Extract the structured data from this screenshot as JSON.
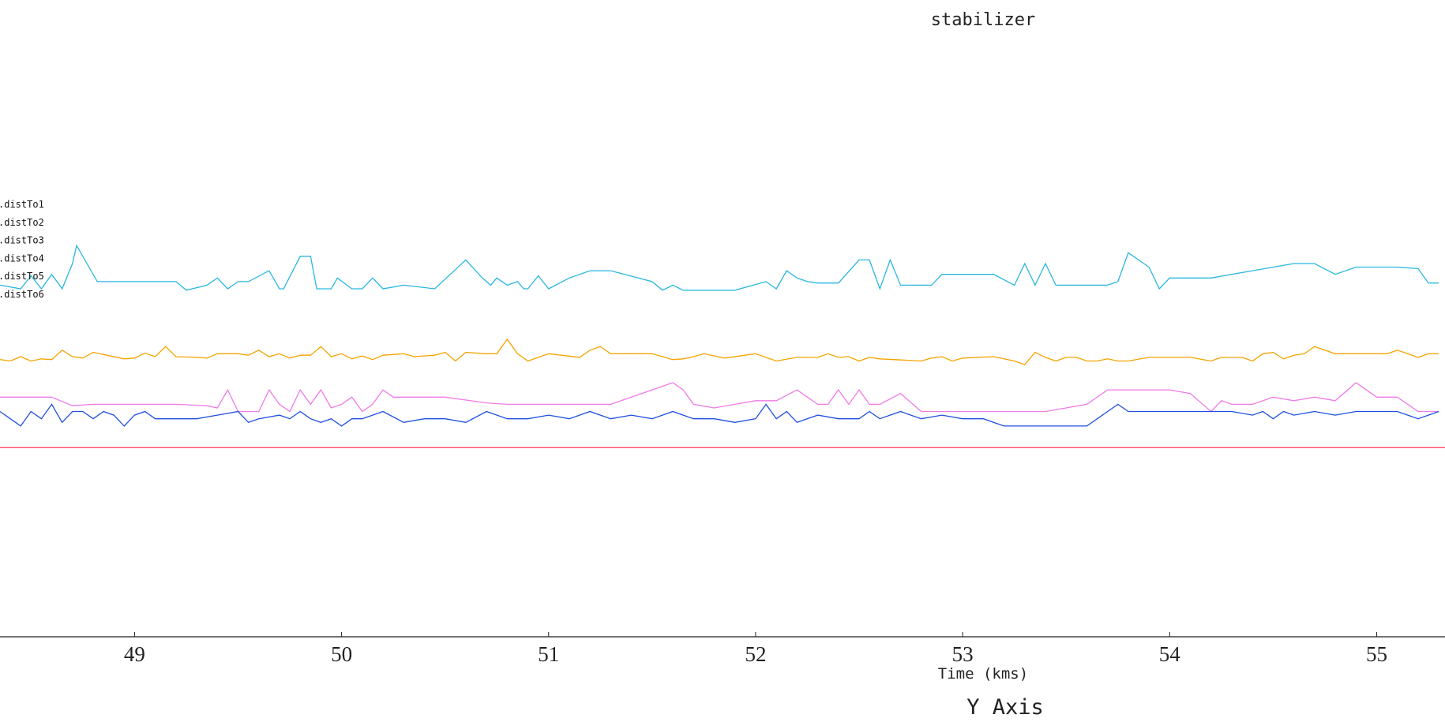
{
  "chart_data": {
    "type": "line",
    "title": "stabilizer",
    "xlabel": "Time (kms)",
    "ylabel": "Y Axis",
    "xlim": [
      48.35,
      55.33
    ],
    "ylim": [
      0,
      1
    ],
    "xticks": [
      49,
      50,
      51,
      52,
      53,
      54,
      55
    ],
    "grid": false,
    "legend_position": "left",
    "series": [
      {
        "name": ".distTo1",
        "color": "#29b6e0",
        "x": [
          48.35,
          48.45,
          48.5,
          48.55,
          48.6,
          48.65,
          48.7,
          48.72,
          48.82,
          49.0,
          49.2,
          49.25,
          49.35,
          49.4,
          49.45,
          49.5,
          49.55,
          49.65,
          49.7,
          49.72,
          49.8,
          49.85,
          49.88,
          49.95,
          49.98,
          50.05,
          50.1,
          50.15,
          50.2,
          50.3,
          50.45,
          50.6,
          50.68,
          50.72,
          50.75,
          50.8,
          50.85,
          50.88,
          50.9,
          50.95,
          51.0,
          51.1,
          51.2,
          51.25,
          51.3,
          51.5,
          51.55,
          51.6,
          51.65,
          51.7,
          51.8,
          51.9,
          52.05,
          52.1,
          52.15,
          52.2,
          52.25,
          52.3,
          52.4,
          52.5,
          52.55,
          52.6,
          52.65,
          52.7,
          52.72,
          52.8,
          52.85,
          52.9,
          53.0,
          53.15,
          53.25,
          53.3,
          53.35,
          53.4,
          53.45,
          53.5,
          53.55,
          53.7,
          53.75,
          53.8,
          53.85,
          53.9,
          53.95,
          54.0,
          54.1,
          54.2,
          54.4,
          54.6,
          54.7,
          54.8,
          54.9,
          55.0,
          55.1,
          55.2,
          55.25,
          55.3
        ],
        "y": [
          0.605,
          0.6,
          0.618,
          0.6,
          0.62,
          0.6,
          0.635,
          0.66,
          0.61,
          0.61,
          0.61,
          0.598,
          0.605,
          0.615,
          0.6,
          0.61,
          0.61,
          0.625,
          0.6,
          0.6,
          0.645,
          0.645,
          0.6,
          0.6,
          0.615,
          0.6,
          0.6,
          0.615,
          0.6,
          0.605,
          0.6,
          0.64,
          0.615,
          0.605,
          0.615,
          0.605,
          0.61,
          0.6,
          0.6,
          0.618,
          0.6,
          0.615,
          0.625,
          0.625,
          0.625,
          0.61,
          0.598,
          0.605,
          0.598,
          0.598,
          0.598,
          0.598,
          0.61,
          0.6,
          0.625,
          0.615,
          0.61,
          0.608,
          0.608,
          0.64,
          0.64,
          0.6,
          0.64,
          0.605,
          0.605,
          0.605,
          0.605,
          0.62,
          0.62,
          0.62,
          0.605,
          0.635,
          0.605,
          0.635,
          0.605,
          0.605,
          0.605,
          0.605,
          0.61,
          0.65,
          0.64,
          0.63,
          0.6,
          0.615,
          0.615,
          0.615,
          0.625,
          0.635,
          0.635,
          0.62,
          0.63,
          0.63,
          0.63,
          0.628,
          0.608,
          0.608
        ]
      },
      {
        "name": ".distTo2",
        "color": "#f5a300",
        "x": [
          48.35,
          48.4,
          48.45,
          48.5,
          48.55,
          48.6,
          48.65,
          48.7,
          48.75,
          48.8,
          48.95,
          49.0,
          49.05,
          49.1,
          49.15,
          49.2,
          49.3,
          49.35,
          49.4,
          49.5,
          49.55,
          49.6,
          49.65,
          49.7,
          49.75,
          49.8,
          49.85,
          49.9,
          49.95,
          50.0,
          50.05,
          50.1,
          50.15,
          50.2,
          50.3,
          50.35,
          50.45,
          50.5,
          50.55,
          50.6,
          50.7,
          50.75,
          50.8,
          50.85,
          50.9,
          51.0,
          51.15,
          51.2,
          51.25,
          51.3,
          51.5,
          51.6,
          51.65,
          51.7,
          51.75,
          51.85,
          52.0,
          52.1,
          52.2,
          52.3,
          52.35,
          52.4,
          52.45,
          52.5,
          52.55,
          52.6,
          52.8,
          52.85,
          52.9,
          52.95,
          53.0,
          53.15,
          53.25,
          53.3,
          53.35,
          53.4,
          53.45,
          53.5,
          53.55,
          53.6,
          53.65,
          53.7,
          53.75,
          53.8,
          53.9,
          54.0,
          54.1,
          54.2,
          54.25,
          54.3,
          54.35,
          54.4,
          54.45,
          54.5,
          54.55,
          54.6,
          54.65,
          54.7,
          54.8,
          54.9,
          55.0,
          55.05,
          55.1,
          55.15,
          55.2,
          55.25,
          55.3
        ],
        "y": [
          0.502,
          0.5,
          0.506,
          0.5,
          0.503,
          0.502,
          0.515,
          0.506,
          0.504,
          0.512,
          0.503,
          0.504,
          0.511,
          0.506,
          0.52,
          0.506,
          0.505,
          0.504,
          0.51,
          0.51,
          0.508,
          0.515,
          0.506,
          0.51,
          0.504,
          0.508,
          0.508,
          0.52,
          0.506,
          0.51,
          0.503,
          0.507,
          0.502,
          0.508,
          0.51,
          0.506,
          0.508,
          0.512,
          0.5,
          0.512,
          0.51,
          0.51,
          0.53,
          0.51,
          0.5,
          0.51,
          0.505,
          0.515,
          0.52,
          0.51,
          0.51,
          0.502,
          0.503,
          0.506,
          0.51,
          0.504,
          0.51,
          0.5,
          0.505,
          0.505,
          0.51,
          0.505,
          0.506,
          0.5,
          0.505,
          0.503,
          0.5,
          0.504,
          0.506,
          0.5,
          0.504,
          0.506,
          0.5,
          0.495,
          0.512,
          0.505,
          0.5,
          0.505,
          0.505,
          0.5,
          0.5,
          0.503,
          0.5,
          0.5,
          0.505,
          0.505,
          0.505,
          0.5,
          0.505,
          0.505,
          0.505,
          0.5,
          0.51,
          0.512,
          0.503,
          0.508,
          0.51,
          0.52,
          0.51,
          0.51,
          0.51,
          0.51,
          0.515,
          0.51,
          0.505,
          0.51,
          0.51
        ]
      },
      {
        "name": ".distTo3",
        "color": "#f07ae6",
        "x": [
          48.35,
          48.6,
          48.7,
          48.8,
          49.0,
          49.2,
          49.35,
          49.4,
          49.45,
          49.5,
          49.6,
          49.65,
          49.7,
          49.75,
          49.8,
          49.85,
          49.9,
          49.95,
          50.0,
          50.05,
          50.1,
          50.15,
          50.2,
          50.25,
          50.3,
          50.5,
          50.7,
          50.8,
          50.9,
          51.1,
          51.3,
          51.4,
          51.5,
          51.6,
          51.65,
          51.7,
          51.8,
          51.9,
          52.0,
          52.1,
          52.2,
          52.3,
          52.35,
          52.4,
          52.45,
          52.5,
          52.55,
          52.6,
          52.7,
          52.8,
          52.9,
          53.0,
          53.2,
          53.4,
          53.6,
          53.7,
          53.75,
          53.8,
          53.9,
          54.0,
          54.1,
          54.2,
          54.25,
          54.3,
          54.4,
          54.5,
          54.6,
          54.7,
          54.8,
          54.9,
          55.0,
          55.1,
          55.2,
          55.3
        ],
        "y": [
          0.45,
          0.45,
          0.438,
          0.44,
          0.44,
          0.44,
          0.438,
          0.435,
          0.46,
          0.43,
          0.43,
          0.46,
          0.44,
          0.43,
          0.46,
          0.44,
          0.46,
          0.435,
          0.44,
          0.45,
          0.43,
          0.44,
          0.46,
          0.45,
          0.45,
          0.45,
          0.442,
          0.44,
          0.44,
          0.44,
          0.44,
          0.45,
          0.46,
          0.47,
          0.46,
          0.44,
          0.435,
          0.44,
          0.445,
          0.445,
          0.46,
          0.44,
          0.44,
          0.46,
          0.44,
          0.46,
          0.44,
          0.44,
          0.455,
          0.43,
          0.43,
          0.43,
          0.43,
          0.43,
          0.44,
          0.46,
          0.46,
          0.46,
          0.46,
          0.46,
          0.455,
          0.43,
          0.445,
          0.44,
          0.44,
          0.45,
          0.445,
          0.45,
          0.445,
          0.47,
          0.45,
          0.45,
          0.43,
          0.43
        ]
      },
      {
        "name": ".distTo4",
        "color": "#1f4fe0",
        "x": [
          48.35,
          48.4,
          48.45,
          48.5,
          48.55,
          48.6,
          48.65,
          48.7,
          48.75,
          48.8,
          48.85,
          48.9,
          48.95,
          49.0,
          49.05,
          49.1,
          49.2,
          49.3,
          49.4,
          49.5,
          49.55,
          49.6,
          49.7,
          49.75,
          49.8,
          49.85,
          49.9,
          49.95,
          50.0,
          50.05,
          50.1,
          50.2,
          50.3,
          50.4,
          50.5,
          50.6,
          50.7,
          50.8,
          50.9,
          51.0,
          51.1,
          51.2,
          51.3,
          51.4,
          51.5,
          51.6,
          51.7,
          51.8,
          51.9,
          52.0,
          52.05,
          52.1,
          52.15,
          52.2,
          52.3,
          52.4,
          52.5,
          52.55,
          52.6,
          52.7,
          52.8,
          52.9,
          53.0,
          53.1,
          53.2,
          53.3,
          53.4,
          53.5,
          53.6,
          53.7,
          53.75,
          53.8,
          53.9,
          54.0,
          54.1,
          54.2,
          54.3,
          54.4,
          54.45,
          54.5,
          54.55,
          54.6,
          54.7,
          54.8,
          54.9,
          55.0,
          55.1,
          55.2,
          55.3
        ],
        "y": [
          0.43,
          0.42,
          0.41,
          0.43,
          0.42,
          0.44,
          0.415,
          0.43,
          0.43,
          0.42,
          0.43,
          0.425,
          0.41,
          0.425,
          0.43,
          0.42,
          0.42,
          0.42,
          0.425,
          0.43,
          0.415,
          0.42,
          0.425,
          0.42,
          0.43,
          0.42,
          0.415,
          0.42,
          0.41,
          0.42,
          0.42,
          0.43,
          0.415,
          0.42,
          0.42,
          0.415,
          0.43,
          0.42,
          0.42,
          0.425,
          0.42,
          0.43,
          0.42,
          0.425,
          0.42,
          0.43,
          0.42,
          0.42,
          0.415,
          0.42,
          0.44,
          0.42,
          0.43,
          0.415,
          0.425,
          0.42,
          0.42,
          0.43,
          0.42,
          0.43,
          0.42,
          0.425,
          0.42,
          0.42,
          0.41,
          0.41,
          0.41,
          0.41,
          0.41,
          0.43,
          0.44,
          0.43,
          0.43,
          0.43,
          0.43,
          0.43,
          0.43,
          0.425,
          0.43,
          0.42,
          0.43,
          0.425,
          0.43,
          0.425,
          0.43,
          0.43,
          0.43,
          0.42,
          0.43
        ]
      },
      {
        "name": ".distTo5",
        "color": "#ff4d6a",
        "x": [
          48.35,
          55.33
        ],
        "y": [
          0.38,
          0.38
        ]
      },
      {
        "name": ".distTo6",
        "color": "#8a8a8a",
        "x": [],
        "y": []
      }
    ]
  }
}
